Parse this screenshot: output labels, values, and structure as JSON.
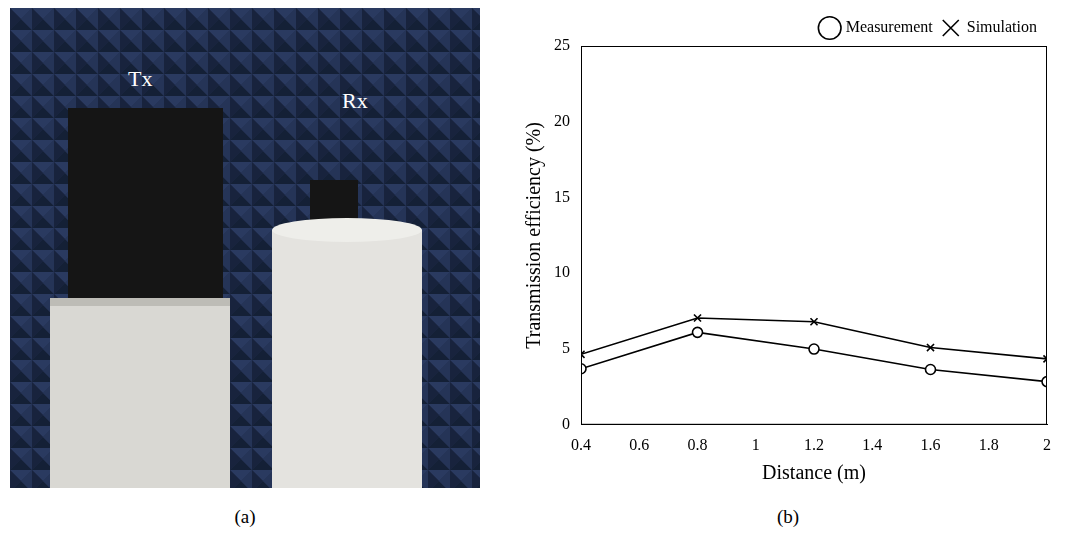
{
  "photo": {
    "panel_label": "(a)",
    "labels": [
      "Tx",
      "Rx"
    ]
  },
  "chart_data": {
    "type": "line",
    "panel_label": "(b)",
    "x_label": "Distance (m)",
    "y_label": "Transmission efficiency (%)",
    "x": [
      0.4,
      0.8,
      1.2,
      1.6,
      2
    ],
    "series": [
      {
        "name": "Measurement",
        "color": "#000000",
        "marker": "circle",
        "line_style": "solid",
        "values": [
          3.7,
          6.1,
          5.0,
          3.65,
          2.85
        ]
      },
      {
        "name": "Simulation",
        "color": "#000000",
        "marker": "x",
        "line_style": "solid",
        "values": [
          4.65,
          7.05,
          6.8,
          5.1,
          4.35
        ]
      }
    ],
    "xlim": [
      0.4,
      2
    ],
    "xticks": [
      0.4,
      0.6,
      0.8,
      1,
      1.2,
      1.4,
      1.6,
      1.8,
      2
    ],
    "ylim": [
      0,
      25
    ],
    "yticks": [
      0,
      5,
      10,
      15,
      20,
      25
    ],
    "grid": false,
    "legend": "top-right"
  }
}
